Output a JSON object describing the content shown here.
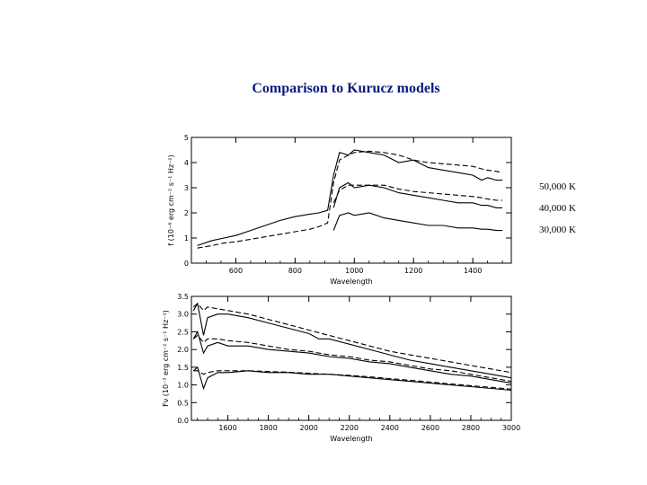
{
  "slide": {
    "title": "Comparison to Kurucz models"
  },
  "chart_data": [
    {
      "type": "line",
      "xlabel": "Wavelength",
      "ylabel": "f (10⁻⁶ erg cm⁻² s⁻¹ Hz⁻¹)",
      "xlim": [
        450,
        1530
      ],
      "ylim": [
        0,
        5
      ],
      "xticks": [
        600,
        800,
        1000,
        1200,
        1400
      ],
      "yticks": [
        0,
        1,
        2,
        3,
        4,
        5
      ],
      "grid": false,
      "annotations": [
        "50,000 K",
        "40,000 K",
        "30,000 K"
      ],
      "series": [
        {
          "style": "solid",
          "x": [
            470,
            520,
            560,
            600,
            650,
            700,
            750,
            800,
            850,
            880,
            910,
            930,
            950,
            980,
            1000,
            1050,
            1100,
            1150,
            1200,
            1250,
            1300,
            1350,
            1400,
            1430,
            1450,
            1480,
            1500
          ],
          "y": [
            0.7,
            0.9,
            1.0,
            1.1,
            1.3,
            1.5,
            1.7,
            1.85,
            1.95,
            2.0,
            2.1,
            3.5,
            4.4,
            4.3,
            4.5,
            4.4,
            4.3,
            4.0,
            4.1,
            3.8,
            3.7,
            3.6,
            3.5,
            3.3,
            3.4,
            3.3,
            3.3
          ]
        },
        {
          "style": "dashed",
          "x": [
            470,
            520,
            560,
            600,
            650,
            700,
            750,
            800,
            850,
            880,
            910,
            930,
            950,
            980,
            1000,
            1050,
            1100,
            1150,
            1200,
            1250,
            1300,
            1350,
            1400,
            1430,
            1450,
            1480,
            1500
          ],
          "y": [
            0.6,
            0.7,
            0.8,
            0.85,
            0.95,
            1.05,
            1.15,
            1.25,
            1.35,
            1.45,
            1.6,
            3.2,
            4.1,
            4.3,
            4.4,
            4.45,
            4.4,
            4.3,
            4.1,
            4.0,
            3.95,
            3.9,
            3.85,
            3.75,
            3.7,
            3.65,
            3.6
          ]
        },
        {
          "style": "solid",
          "x": [
            930,
            950,
            980,
            1000,
            1050,
            1100,
            1150,
            1200,
            1250,
            1300,
            1350,
            1400,
            1430,
            1450,
            1480,
            1500
          ],
          "y": [
            2.2,
            3.0,
            3.2,
            3.0,
            3.1,
            3.0,
            2.8,
            2.7,
            2.6,
            2.5,
            2.4,
            2.4,
            2.3,
            2.3,
            2.2,
            2.2
          ]
        },
        {
          "style": "dashed",
          "x": [
            930,
            950,
            980,
            1000,
            1050,
            1100,
            1150,
            1200,
            1250,
            1300,
            1350,
            1400,
            1430,
            1450,
            1480,
            1500
          ],
          "y": [
            2.4,
            2.9,
            3.1,
            3.1,
            3.1,
            3.1,
            2.95,
            2.85,
            2.8,
            2.75,
            2.7,
            2.65,
            2.6,
            2.55,
            2.5,
            2.5
          ]
        },
        {
          "style": "solid",
          "x": [
            930,
            950,
            980,
            1000,
            1050,
            1100,
            1150,
            1200,
            1250,
            1300,
            1350,
            1400,
            1430,
            1450,
            1480,
            1500
          ],
          "y": [
            1.3,
            1.9,
            2.0,
            1.9,
            2.0,
            1.8,
            1.7,
            1.6,
            1.5,
            1.5,
            1.4,
            1.4,
            1.35,
            1.35,
            1.3,
            1.3
          ]
        }
      ]
    },
    {
      "type": "line",
      "xlabel": "Wavelength",
      "ylabel": "Fν (10⁻³ erg cm⁻² s⁻¹ Hz⁻¹)",
      "xlim": [
        1420,
        3000
      ],
      "ylim": [
        0,
        3.5
      ],
      "xticks": [
        1600,
        1800,
        2000,
        2200,
        2400,
        2600,
        2800,
        3000
      ],
      "xticklabels": [
        "1600",
        "1800",
        "2000",
        "2200",
        "2400",
        "2600",
        "2800",
        "3000"
      ],
      "yticks": [
        0.0,
        0.5,
        1.0,
        1.5,
        2.0,
        2.5,
        3.0,
        3.5
      ],
      "yticklabels": [
        "0.0",
        "0.5",
        "1.0",
        "1.5",
        "2.0",
        "2.5",
        "3.0",
        "3.5"
      ],
      "grid": false,
      "series": [
        {
          "style": "solid",
          "x": [
            1430,
            1450,
            1480,
            1500,
            1550,
            1600,
            1700,
            1800,
            1900,
            2000,
            2050,
            2100,
            2200,
            2300,
            2400,
            2500,
            2600,
            2700,
            2800,
            2900,
            3000
          ],
          "y": [
            3.1,
            3.3,
            2.4,
            2.9,
            3.0,
            3.0,
            2.9,
            2.75,
            2.6,
            2.45,
            2.3,
            2.3,
            2.15,
            2.0,
            1.85,
            1.7,
            1.6,
            1.5,
            1.4,
            1.3,
            1.2
          ]
        },
        {
          "style": "dashed",
          "x": [
            1430,
            1450,
            1480,
            1500,
            1550,
            1600,
            1700,
            1800,
            1900,
            2000,
            2100,
            2200,
            2300,
            2400,
            2500,
            2600,
            2700,
            2800,
            2900,
            3000
          ],
          "y": [
            3.2,
            3.3,
            3.1,
            3.2,
            3.15,
            3.1,
            3.0,
            2.85,
            2.7,
            2.55,
            2.4,
            2.25,
            2.1,
            1.95,
            1.85,
            1.75,
            1.65,
            1.55,
            1.45,
            1.35
          ]
        },
        {
          "style": "solid",
          "x": [
            1430,
            1450,
            1480,
            1500,
            1550,
            1600,
            1700,
            1800,
            1900,
            2000,
            2100,
            2200,
            2300,
            2400,
            2500,
            2600,
            2700,
            2800,
            2900,
            3000
          ],
          "y": [
            2.3,
            2.5,
            1.9,
            2.1,
            2.2,
            2.1,
            2.1,
            2.0,
            1.95,
            1.9,
            1.8,
            1.75,
            1.65,
            1.6,
            1.5,
            1.4,
            1.3,
            1.25,
            1.15,
            1.05
          ]
        },
        {
          "style": "dashed",
          "x": [
            1430,
            1450,
            1480,
            1500,
            1550,
            1600,
            1700,
            1800,
            1900,
            2000,
            2100,
            2200,
            2300,
            2400,
            2500,
            2600,
            2700,
            2800,
            2900,
            3000
          ],
          "y": [
            2.3,
            2.4,
            2.2,
            2.3,
            2.3,
            2.25,
            2.2,
            2.1,
            2.0,
            1.95,
            1.85,
            1.8,
            1.7,
            1.65,
            1.55,
            1.45,
            1.4,
            1.3,
            1.2,
            1.1
          ]
        },
        {
          "style": "solid",
          "x": [
            1430,
            1450,
            1480,
            1500,
            1550,
            1600,
            1700,
            1800,
            1900,
            2000,
            2100,
            2200,
            2300,
            2400,
            2500,
            2600,
            2700,
            2800,
            2900,
            3000
          ],
          "y": [
            1.4,
            1.5,
            0.9,
            1.2,
            1.35,
            1.35,
            1.4,
            1.35,
            1.35,
            1.3,
            1.3,
            1.25,
            1.2,
            1.15,
            1.1,
            1.05,
            1.0,
            0.95,
            0.9,
            0.85
          ]
        },
        {
          "style": "dashed",
          "x": [
            1430,
            1450,
            1480,
            1500,
            1550,
            1600,
            1700,
            1800,
            1900,
            2000,
            2100,
            2200,
            2300,
            2400,
            2500,
            2600,
            2700,
            2800,
            2900,
            3000
          ],
          "y": [
            1.4,
            1.4,
            1.3,
            1.35,
            1.4,
            1.4,
            1.4,
            1.38,
            1.36,
            1.33,
            1.3,
            1.27,
            1.23,
            1.18,
            1.13,
            1.08,
            1.03,
            0.98,
            0.93,
            0.88
          ]
        }
      ]
    }
  ]
}
